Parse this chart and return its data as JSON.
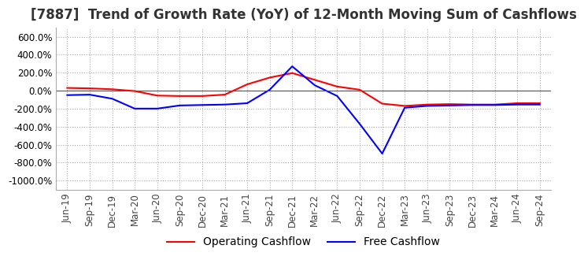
{
  "title": "[7887]  Trend of Growth Rate (YoY) of 12-Month Moving Sum of Cashflows",
  "ylim": [
    -1100,
    700
  ],
  "yticks": [
    600,
    400,
    200,
    0,
    -200,
    -400,
    -600,
    -800,
    -1000
  ],
  "background_color": "#ffffff",
  "grid_color": "#aaaaaa",
  "x_labels": [
    "Jun-19",
    "Sep-19",
    "Dec-19",
    "Mar-20",
    "Jun-20",
    "Sep-20",
    "Dec-20",
    "Mar-21",
    "Jun-21",
    "Sep-21",
    "Dec-21",
    "Mar-22",
    "Jun-22",
    "Sep-22",
    "Dec-22",
    "Mar-23",
    "Jun-23",
    "Sep-23",
    "Dec-23",
    "Mar-24",
    "Jun-24",
    "Sep-24"
  ],
  "operating_cashflow": [
    30,
    25,
    15,
    -5,
    -55,
    -60,
    -60,
    -45,
    70,
    145,
    195,
    120,
    45,
    10,
    -145,
    -170,
    -155,
    -150,
    -155,
    -155,
    -140,
    -140
  ],
  "free_cashflow": [
    -50,
    -45,
    -90,
    -200,
    -200,
    -165,
    -160,
    -155,
    -140,
    10,
    270,
    60,
    -60,
    -370,
    -700,
    -190,
    -170,
    -165,
    -160,
    -160,
    -155,
    -155
  ],
  "operating_color": "#ff0000",
  "free_color": "#0000ff",
  "title_fontsize": 12,
  "tick_fontsize": 8.5,
  "legend_fontsize": 10
}
